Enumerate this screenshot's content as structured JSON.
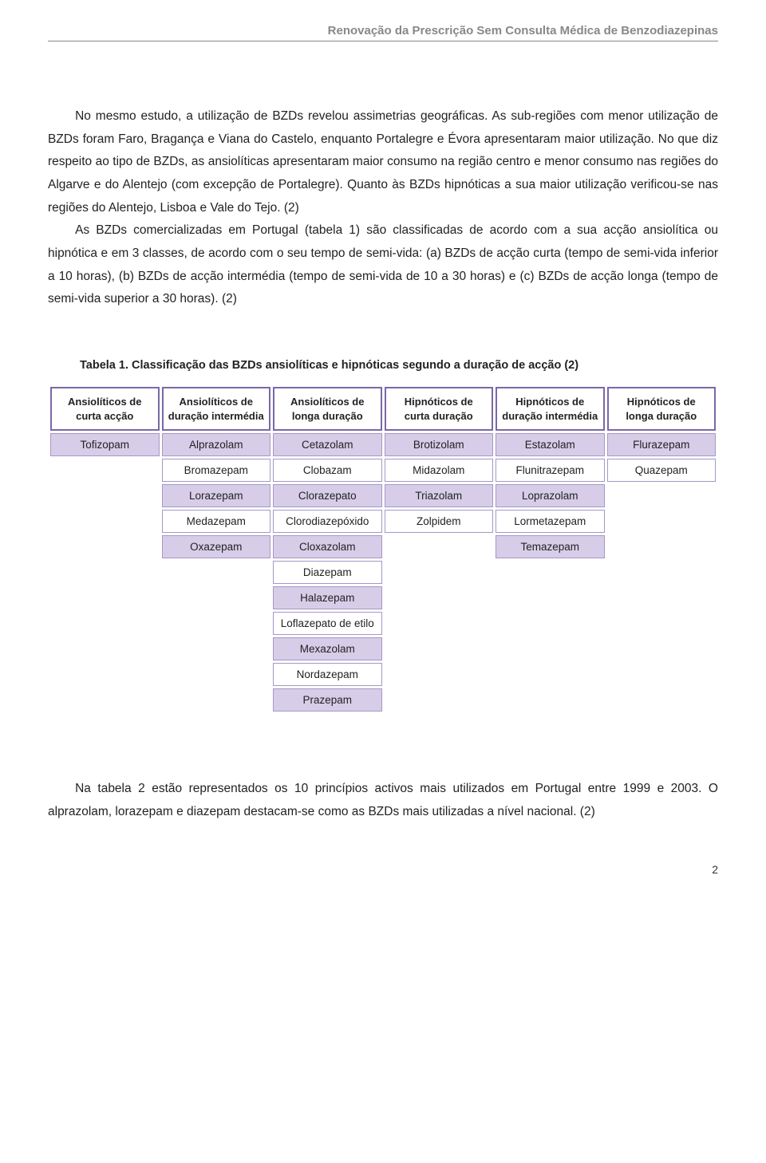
{
  "header": {
    "title": "Renovação da Prescrição Sem Consulta Médica de Benzodiazepinas"
  },
  "paragraphs": {
    "p1": "No mesmo estudo, a utilização de BZDs revelou assimetrias geográficas. As sub-regiões com menor utilização de BZDs foram Faro, Bragança e Viana do Castelo, enquanto Portalegre e Évora apresentaram maior utilização. No que diz respeito ao tipo de BZDs, as ansiolíticas apresentaram maior consumo na região centro e menor consumo nas regiões do Algarve e do Alentejo (com excepção de Portalegre). Quanto às BZDs hipnóticas a sua maior utilização verificou-se nas regiões do Alentejo, Lisboa e Vale do Tejo. (2)",
    "p2": "As BZDs comercializadas em Portugal (tabela 1) são classificadas de acordo com a sua acção ansiolítica ou hipnótica e em 3 classes, de acordo com o seu tempo de semi-vida: (a) BZDs de acção curta (tempo de semi-vida inferior a 10 horas), (b) BZDs de acção intermédia (tempo de semi-vida de 10 a 30 horas) e (c) BZDs de acção longa (tempo de semi-vida superior a 30 horas). (2)",
    "p3": "Na tabela 2 estão representados os 10 princípios activos mais utilizados em Portugal entre 1999 e 2003. O alprazolam, lorazepam e diazepam destacam-se como as BZDs mais utilizadas a nível nacional. (2)"
  },
  "table": {
    "caption": "Tabela 1. Classificação das BZDs ansiolíticas e hipnóticas segundo a duração de acção (2)",
    "headers": [
      "Ansiolíticos de curta acção",
      "Ansiolíticos de duração intermédia",
      "Ansiolíticos de longa duração",
      "Hipnóticos de curta duração",
      "Hipnóticos de duração intermédia",
      "Hipnóticos de longa duração"
    ],
    "colors": {
      "header_border": "#7b68a8",
      "cell_border": "#a598c6",
      "shaded_bg": "#d7cde8",
      "plain_bg": "#ffffff"
    },
    "rows": [
      {
        "cells": [
          "Tofizopam",
          "Alprazolam",
          "Cetazolam",
          "Brotizolam",
          "Estazolam",
          "Flurazepam"
        ],
        "shaded": [
          true,
          true,
          true,
          true,
          true,
          true
        ]
      },
      {
        "cells": [
          "",
          "Bromazepam",
          "Clobazam",
          "Midazolam",
          "Flunitrazepam",
          "Quazepam"
        ],
        "shaded": [
          false,
          false,
          false,
          false,
          false,
          false
        ],
        "empty": [
          true,
          false,
          false,
          false,
          false,
          false
        ]
      },
      {
        "cells": [
          "",
          "Lorazepam",
          "Clorazepato",
          "Triazolam",
          "Loprazolam",
          ""
        ],
        "shaded": [
          false,
          true,
          true,
          true,
          true,
          false
        ],
        "empty": [
          true,
          false,
          false,
          false,
          false,
          true
        ]
      },
      {
        "cells": [
          "",
          "Medazepam",
          "Clorodiazepóxido",
          "Zolpidem",
          "Lormetazepam",
          ""
        ],
        "shaded": [
          false,
          false,
          false,
          false,
          false,
          false
        ],
        "empty": [
          true,
          false,
          false,
          false,
          false,
          true
        ]
      },
      {
        "cells": [
          "",
          "Oxazepam",
          "Cloxazolam",
          "",
          "Temazepam",
          ""
        ],
        "shaded": [
          false,
          true,
          true,
          false,
          true,
          false
        ],
        "empty": [
          true,
          false,
          false,
          true,
          false,
          true
        ]
      },
      {
        "cells": [
          "",
          "",
          "Diazepam",
          "",
          "",
          ""
        ],
        "shaded": [
          false,
          false,
          false,
          false,
          false,
          false
        ],
        "empty": [
          true,
          true,
          false,
          true,
          true,
          true
        ]
      },
      {
        "cells": [
          "",
          "",
          "Halazepam",
          "",
          "",
          ""
        ],
        "shaded": [
          false,
          false,
          true,
          false,
          false,
          false
        ],
        "empty": [
          true,
          true,
          false,
          true,
          true,
          true
        ]
      },
      {
        "cells": [
          "",
          "",
          "Loflazepato de etilo",
          "",
          "",
          ""
        ],
        "shaded": [
          false,
          false,
          false,
          false,
          false,
          false
        ],
        "empty": [
          true,
          true,
          false,
          true,
          true,
          true
        ]
      },
      {
        "cells": [
          "",
          "",
          "Mexazolam",
          "",
          "",
          ""
        ],
        "shaded": [
          false,
          false,
          true,
          false,
          false,
          false
        ],
        "empty": [
          true,
          true,
          false,
          true,
          true,
          true
        ]
      },
      {
        "cells": [
          "",
          "",
          "Nordazepam",
          "",
          "",
          ""
        ],
        "shaded": [
          false,
          false,
          false,
          false,
          false,
          false
        ],
        "empty": [
          true,
          true,
          false,
          true,
          true,
          true
        ]
      },
      {
        "cells": [
          "",
          "",
          "Prazepam",
          "",
          "",
          ""
        ],
        "shaded": [
          false,
          false,
          true,
          false,
          false,
          false
        ],
        "empty": [
          true,
          true,
          false,
          true,
          true,
          true
        ]
      }
    ]
  },
  "page_number": "2"
}
